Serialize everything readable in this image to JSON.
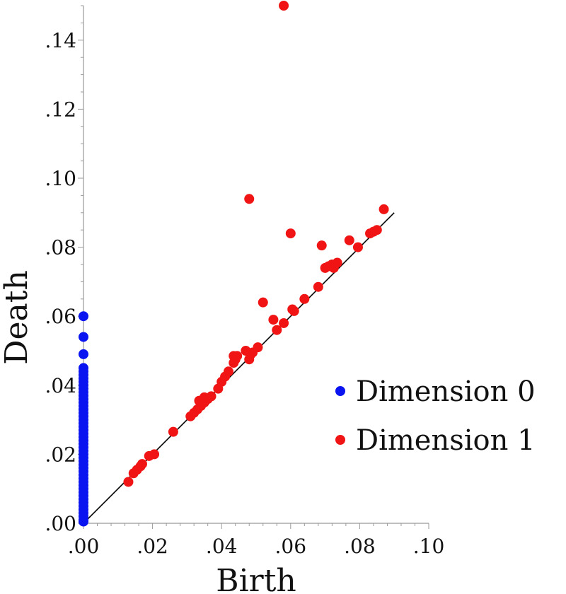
{
  "chart_data": {
    "type": "scatter",
    "title": "",
    "xlabel": "Birth",
    "ylabel": "Death",
    "xlim": [
      0,
      0.1
    ],
    "ylim": [
      0,
      0.15
    ],
    "x_ticks": [
      ".00",
      ".02",
      ".04",
      ".06",
      ".08",
      ".10"
    ],
    "y_ticks": [
      ".00",
      ".02",
      ".04",
      ".06",
      ".08",
      ".10",
      ".12",
      ".14"
    ],
    "diagonal": {
      "from": [
        0,
        0
      ],
      "to": [
        0.09,
        0.09
      ],
      "color": "#000000"
    },
    "legend_position": "right",
    "series": [
      {
        "name": "Dimension 0",
        "color": "#0a14f0",
        "points": [
          [
            0,
            0.06
          ],
          [
            0,
            0.054
          ],
          [
            0,
            0.049
          ],
          [
            0,
            0.045
          ],
          [
            0,
            0.044
          ],
          [
            0,
            0.043
          ],
          [
            0,
            0.042
          ],
          [
            0,
            0.041
          ],
          [
            0,
            0.04
          ],
          [
            0,
            0.039
          ],
          [
            0,
            0.038
          ],
          [
            0,
            0.037
          ],
          [
            0,
            0.036
          ],
          [
            0,
            0.035
          ],
          [
            0,
            0.034
          ],
          [
            0,
            0.033
          ],
          [
            0,
            0.032
          ],
          [
            0,
            0.031
          ],
          [
            0,
            0.03
          ],
          [
            0,
            0.029
          ],
          [
            0,
            0.028
          ],
          [
            0,
            0.027
          ],
          [
            0,
            0.026
          ],
          [
            0,
            0.025
          ],
          [
            0,
            0.024
          ],
          [
            0,
            0.023
          ],
          [
            0,
            0.022
          ],
          [
            0,
            0.021
          ],
          [
            0,
            0.02
          ],
          [
            0,
            0.019
          ],
          [
            0,
            0.018
          ],
          [
            0,
            0.017
          ],
          [
            0,
            0.016
          ],
          [
            0,
            0.015
          ],
          [
            0,
            0.014
          ],
          [
            0,
            0.013
          ],
          [
            0,
            0.012
          ],
          [
            0,
            0.011
          ],
          [
            0,
            0.01
          ],
          [
            0,
            0.009
          ],
          [
            0,
            0.008
          ],
          [
            0,
            0.007
          ],
          [
            0,
            0.006
          ],
          [
            0,
            0.005
          ],
          [
            0,
            0.004
          ],
          [
            0,
            0.003
          ],
          [
            0,
            0.002
          ],
          [
            0,
            0.001
          ],
          [
            0,
            0.0005
          ]
        ]
      },
      {
        "name": "Dimension 1",
        "color": "#f01414",
        "points": [
          [
            0.013,
            0.012
          ],
          [
            0.0145,
            0.0145
          ],
          [
            0.0155,
            0.0155
          ],
          [
            0.0165,
            0.0165
          ],
          [
            0.017,
            0.0172
          ],
          [
            0.019,
            0.0195
          ],
          [
            0.0205,
            0.02
          ],
          [
            0.026,
            0.0265
          ],
          [
            0.031,
            0.031
          ],
          [
            0.032,
            0.032
          ],
          [
            0.033,
            0.033
          ],
          [
            0.034,
            0.034
          ],
          [
            0.0335,
            0.0355
          ],
          [
            0.035,
            0.035
          ],
          [
            0.036,
            0.036
          ],
          [
            0.035,
            0.0365
          ],
          [
            0.037,
            0.0368
          ],
          [
            0.039,
            0.039
          ],
          [
            0.04,
            0.041
          ],
          [
            0.041,
            0.0425
          ],
          [
            0.042,
            0.044
          ],
          [
            0.0435,
            0.0465
          ],
          [
            0.044,
            0.0475
          ],
          [
            0.0435,
            0.0485
          ],
          [
            0.0445,
            0.0485
          ],
          [
            0.047,
            0.05
          ],
          [
            0.048,
            0.0475
          ],
          [
            0.0485,
            0.049
          ],
          [
            0.049,
            0.0495
          ],
          [
            0.0505,
            0.051
          ],
          [
            0.048,
            0.094
          ],
          [
            0.052,
            0.064
          ],
          [
            0.055,
            0.059
          ],
          [
            0.056,
            0.056
          ],
          [
            0.058,
            0.058
          ],
          [
            0.058,
            0.15
          ],
          [
            0.0605,
            0.062
          ],
          [
            0.061,
            0.0615
          ],
          [
            0.06,
            0.084
          ],
          [
            0.064,
            0.065
          ],
          [
            0.068,
            0.0685
          ],
          [
            0.069,
            0.0805
          ],
          [
            0.07,
            0.074
          ],
          [
            0.071,
            0.0745
          ],
          [
            0.072,
            0.075
          ],
          [
            0.0735,
            0.0755
          ],
          [
            0.0725,
            0.074
          ],
          [
            0.077,
            0.082
          ],
          [
            0.0795,
            0.08
          ],
          [
            0.083,
            0.084
          ],
          [
            0.084,
            0.0845
          ],
          [
            0.085,
            0.085
          ],
          [
            0.087,
            0.091
          ]
        ]
      }
    ]
  }
}
